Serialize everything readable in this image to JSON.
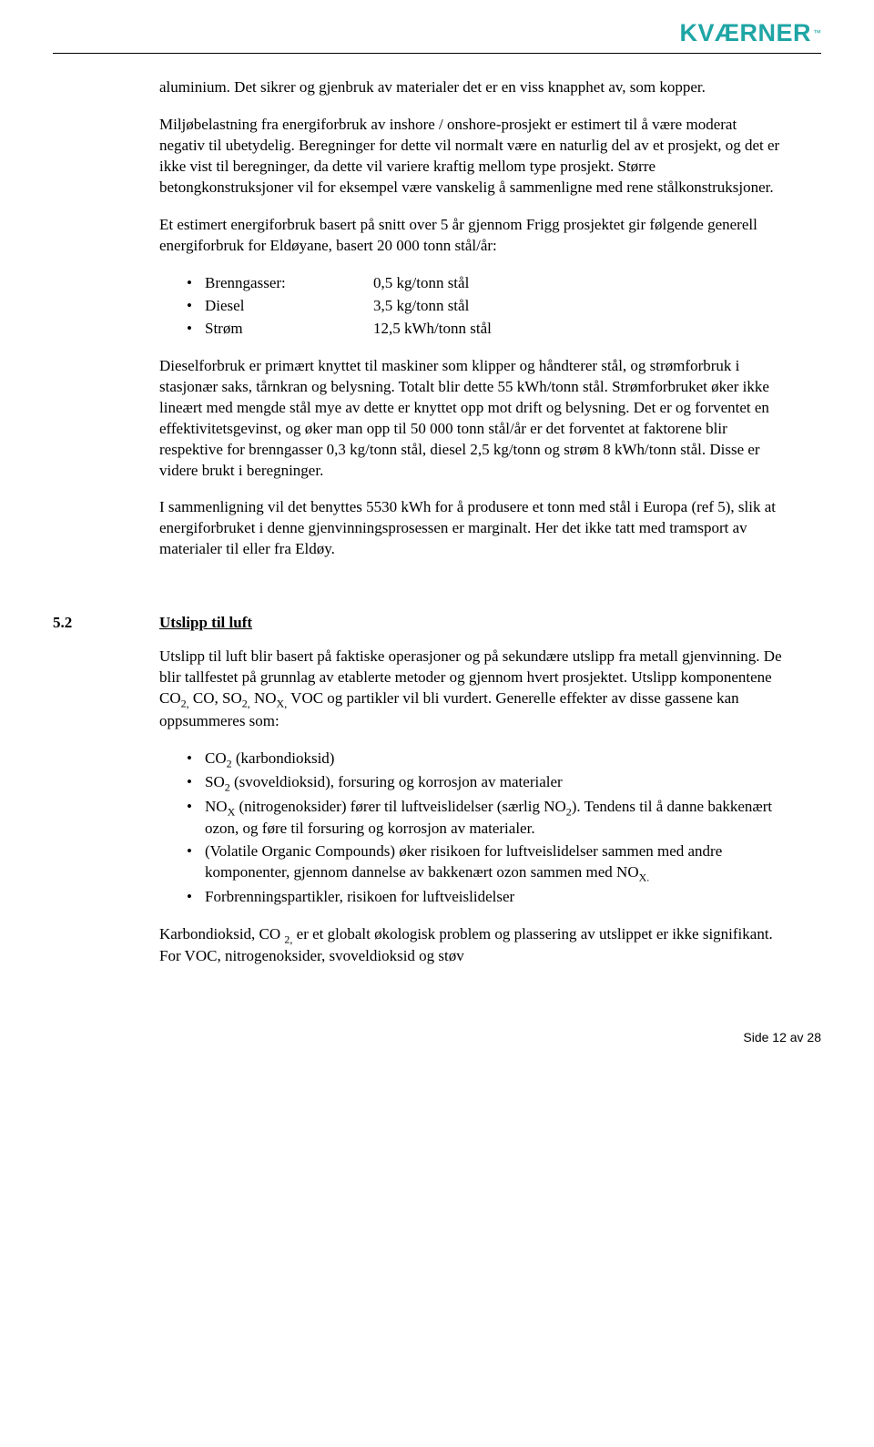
{
  "logo": {
    "text": "KVÆRNER",
    "tm": "™",
    "color": "#1fa5a5"
  },
  "p1": "aluminium. Det sikrer og gjenbruk av materialer det er en viss knapphet av, som kopper.",
  "p2": "Miljøbelastning fra energiforbruk av inshore / onshore-prosjekt er estimert til å være moderat negativ til ubetydelig. Beregninger for dette vil normalt være en naturlig del av et prosjekt, og det er ikke vist til beregninger, da dette vil variere kraftig mellom type prosjekt. Større betongkonstruksjoner vil for eksempel være vanskelig å sammenligne med rene stålkonstruksjoner.",
  "p3": "Et estimert energiforbruk basert på snitt over 5 år gjennom Frigg prosjektet gir følgende generell energiforbruk for Eldøyane, basert 20 000 tonn stål/år:",
  "energy": [
    {
      "k": "Brenngasser:",
      "v": "0,5 kg/tonn stål"
    },
    {
      "k": "Diesel",
      "v": "3,5 kg/tonn stål"
    },
    {
      "k": "Strøm",
      "v": "12,5 kWh/tonn stål"
    }
  ],
  "p4": "Dieselforbruk er primært knyttet til maskiner som klipper og håndterer stål, og strømforbruk i stasjonær saks, tårnkran og belysning. Totalt blir dette 55 kWh/tonn stål. Strømforbruket øker ikke lineært med mengde stål mye av dette er knyttet opp mot drift og belysning. Det er og forventet en effektivitetsgevinst, og øker man opp til 50 000 tonn stål/år er det forventet at faktorene blir respektive for brenngasser 0,3 kg/tonn stål, diesel 2,5 kg/tonn og strøm 8 kWh/tonn stål. Disse er videre brukt i beregninger.",
  "p5": "I sammenligning vil det benyttes 5530 kWh for å produsere et tonn med stål i Europa (ref 5), slik at energiforbruket i denne gjenvinningsprosessen er marginalt. Her det ikke tatt med tramsport av materialer til eller fra Eldøy.",
  "section": {
    "num": "5.2",
    "title": "Utslipp til luft"
  },
  "p6a": "Utslipp til luft blir basert på faktiske operasjoner og på sekundære utslipp fra metall gjenvinning. De blir tallfestet på grunnlag av etablerte metoder og gjennom hvert prosjektet. Utslipp komponentene CO",
  "p6b": " CO, SO",
  "p6c": " NO",
  "p6d": " VOC og partikler vil bli vurdert. Generelle effekter av disse gassene kan oppsummeres som:",
  "sub2c": "2,",
  "subXc": "X,",
  "gases": {
    "i1a": "CO",
    "i1b": " (karbondioksid)",
    "i2a": "SO",
    "i2b": " (svoveldioksid), forsuring og korrosjon av materialer",
    "i3a": "NO",
    "i3b": " (nitrogenoksider) fører til luftveislidelser (særlig NO",
    "i3c": "). Tendens til å danne bakkenært ozon, og føre til forsuring og korrosjon av materialer.",
    "i4": "(Volatile Organic Compounds) øker risikoen for luftveislidelser sammen med andre komponenter, gjennom dannelse av bakkenært ozon sammen med NO",
    "i4b": "",
    "i5": "Forbrenningspartikler, risikoen for luftveislidelser",
    "sub2": "2",
    "subX": "X",
    "subXdot": "X."
  },
  "p7a": "Karbondioksid, CO ",
  "p7sub": "2,",
  "p7b": " er et globalt økologisk problem og plassering av utslippet er ikke signifikant. For VOC, nitrogenoksider, svoveldioksid og støv",
  "footer": "Side 12 av 28"
}
